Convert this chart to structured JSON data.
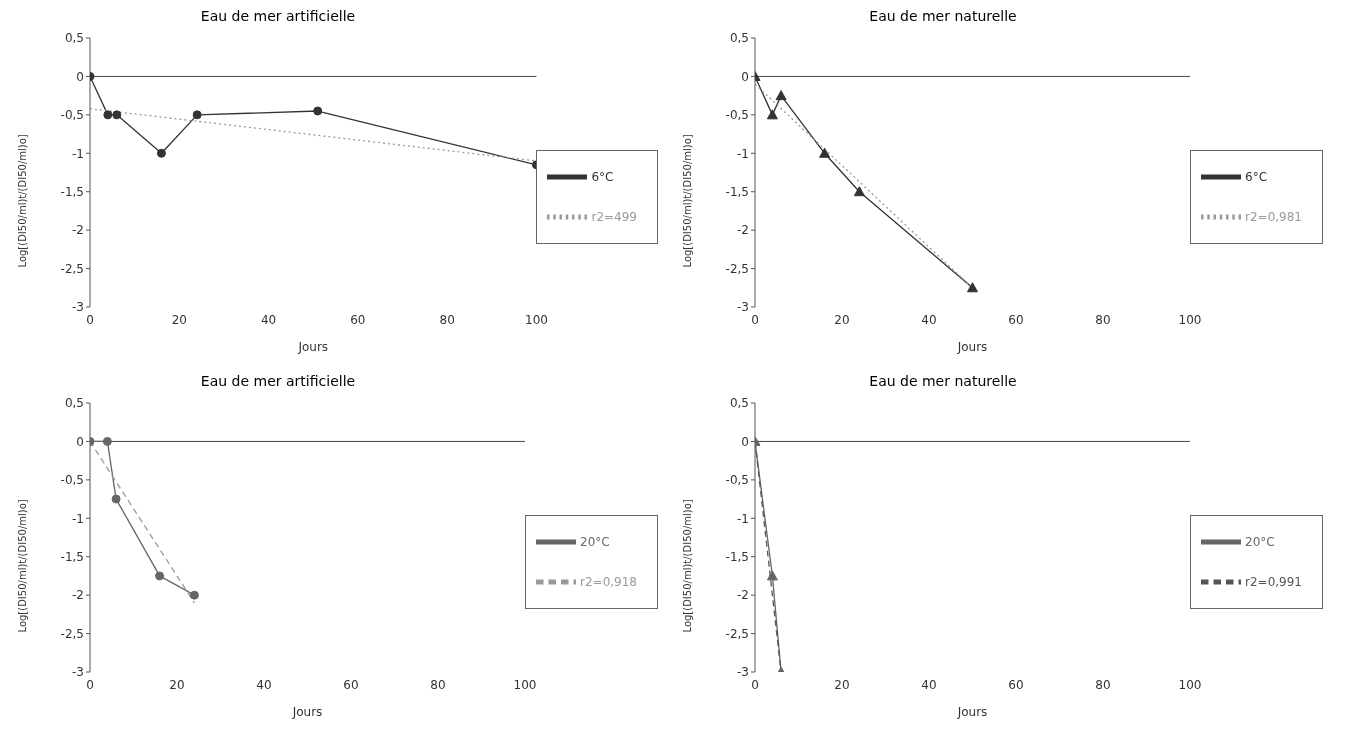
{
  "chart_data": [
    {
      "type": "line",
      "title": "Eau de mer artificielle",
      "xlabel": "Jours",
      "ylabel": "Log[(DI50/ml)t/(DI50/ml)o]",
      "xlim": [
        0,
        100
      ],
      "xticks": [
        0,
        20,
        40,
        60,
        80,
        100
      ],
      "ylim": [
        -3,
        0.5
      ],
      "yticks": [
        {
          "value": -3,
          "label": "-3"
        },
        {
          "value": -2.5,
          "label": "-2,5"
        },
        {
          "value": -2,
          "label": "-2"
        },
        {
          "value": -1.5,
          "label": "-1,5"
        },
        {
          "value": -1,
          "label": "-1"
        },
        {
          "value": -0.5,
          "label": "-0,5"
        },
        {
          "value": 0,
          "label": "0"
        },
        {
          "value": 0.5,
          "label": "0,5"
        }
      ],
      "legend": "right",
      "grid": false,
      "ref_lines": [
        {
          "axis": "y",
          "value": 0
        }
      ],
      "series": [
        {
          "name": "6°C",
          "color": "#333333",
          "marker": "circle",
          "line_style": "solid",
          "x": [
            0,
            4,
            6,
            16,
            24,
            51,
            100
          ],
          "values": [
            0,
            -0.5,
            -0.5,
            -1,
            -0.5,
            -0.45,
            -1.15
          ]
        },
        {
          "name": "r2=499",
          "color": "#999999",
          "marker": "none",
          "line_style": "dotted",
          "x": [
            0,
            100
          ],
          "values": [
            -0.42,
            -1.1
          ]
        }
      ]
    },
    {
      "type": "line",
      "title": "Eau de mer naturelle",
      "xlabel": "Jours",
      "ylabel": "Log[(DI50/ml)t/(DI50/ml)o]",
      "xlim": [
        0,
        100
      ],
      "xticks": [
        0,
        20,
        40,
        60,
        80,
        100
      ],
      "ylim": [
        -3,
        0.5
      ],
      "yticks": [
        {
          "value": -3,
          "label": "-3"
        },
        {
          "value": -2.5,
          "label": "-2,5"
        },
        {
          "value": -2,
          "label": "-2"
        },
        {
          "value": -1.5,
          "label": "-1,5"
        },
        {
          "value": -1,
          "label": "-1"
        },
        {
          "value": -0.5,
          "label": "-0,5"
        },
        {
          "value": 0,
          "label": "0"
        },
        {
          "value": 0.5,
          "label": "0,5"
        }
      ],
      "legend": "right",
      "grid": false,
      "ref_lines": [
        {
          "axis": "y",
          "value": 0
        }
      ],
      "series": [
        {
          "name": "6°C",
          "color": "#333333",
          "marker": "triangle",
          "line_style": "solid",
          "x": [
            0,
            4,
            6,
            16,
            24,
            50
          ],
          "values": [
            0,
            -0.5,
            -0.25,
            -1,
            -1.5,
            -2.75
          ]
        },
        {
          "name": "r2=0,981",
          "color": "#999999",
          "marker": "none",
          "line_style": "dotted",
          "x": [
            0,
            50
          ],
          "values": [
            -0.1,
            -2.75
          ]
        }
      ]
    },
    {
      "type": "line",
      "title": "Eau de mer artificielle",
      "xlabel": "Jours",
      "ylabel": "Log[(DI50/ml)t/(DI50/ml)o]",
      "xlim": [
        0,
        100
      ],
      "xticks": [
        0,
        20,
        40,
        60,
        80,
        100
      ],
      "ylim": [
        -3,
        0.5
      ],
      "yticks": [
        {
          "value": -3,
          "label": "-3"
        },
        {
          "value": -2.5,
          "label": "-2,5"
        },
        {
          "value": -2,
          "label": "-2"
        },
        {
          "value": -1.5,
          "label": "-1,5"
        },
        {
          "value": -1,
          "label": "-1"
        },
        {
          "value": -0.5,
          "label": "-0,5"
        },
        {
          "value": 0,
          "label": "0"
        },
        {
          "value": 0.5,
          "label": "0,5"
        }
      ],
      "legend": "right",
      "grid": false,
      "ref_lines": [
        {
          "axis": "y",
          "value": 0
        }
      ],
      "series": [
        {
          "name": "20°C",
          "color": "#666666",
          "marker": "circle",
          "line_style": "solid",
          "x": [
            0,
            4,
            6,
            16,
            24
          ],
          "values": [
            0,
            0,
            -0.75,
            -1.75,
            -2
          ]
        },
        {
          "name": "r2=0,918",
          "color": "#999999",
          "marker": "none",
          "line_style": "dashed",
          "x": [
            0,
            24
          ],
          "values": [
            0,
            -2.1
          ]
        }
      ]
    },
    {
      "type": "line",
      "title": "Eau de mer naturelle",
      "xlabel": "Jours",
      "ylabel": "Log[(DI50/ml)t/(DI50/ml)o]",
      "xlim": [
        0,
        100
      ],
      "xticks": [
        0,
        20,
        40,
        60,
        80,
        100
      ],
      "ylim": [
        -3,
        0.5
      ],
      "yticks": [
        {
          "value": -3,
          "label": "-3"
        },
        {
          "value": -2.5,
          "label": "-2,5"
        },
        {
          "value": -2,
          "label": "-2"
        },
        {
          "value": -1.5,
          "label": "-1,5"
        },
        {
          "value": -1,
          "label": "-1"
        },
        {
          "value": -0.5,
          "label": "-0,5"
        },
        {
          "value": 0,
          "label": "0"
        },
        {
          "value": 0.5,
          "label": "0,5"
        }
      ],
      "legend": "right",
      "grid": false,
      "ref_lines": [
        {
          "axis": "y",
          "value": 0
        }
      ],
      "series": [
        {
          "name": "20°C",
          "color": "#666666",
          "marker": "triangle",
          "line_style": "solid",
          "x": [
            0,
            4,
            6
          ],
          "values": [
            0,
            -1.75,
            -3
          ]
        },
        {
          "name": "r2=0,991",
          "color": "#555555",
          "marker": "none",
          "line_style": "dashed",
          "x": [
            0,
            6
          ],
          "values": [
            0,
            -3
          ]
        }
      ]
    }
  ]
}
